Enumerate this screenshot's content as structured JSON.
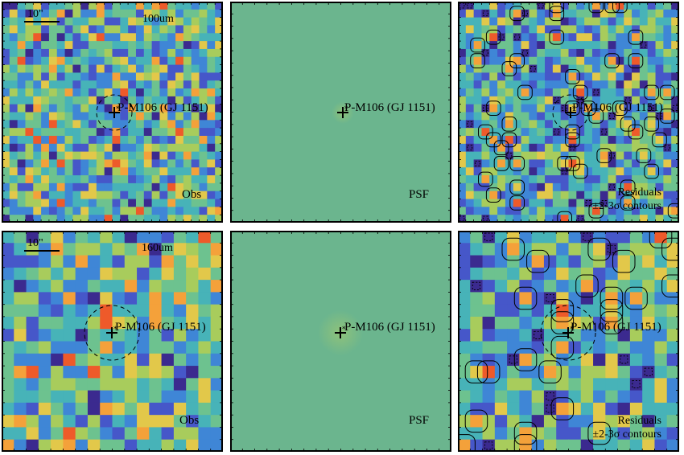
{
  "source_label": "P-M106 (GJ 1151)",
  "scale_bar_label": "10\"",
  "colors": {
    "psf_background": "#6bb58e",
    "psf_center": "#8fc27a",
    "contour": "#000000",
    "frame": "#000000",
    "map_palette": [
      "#3b2a8f",
      "#4657c9",
      "#3f86d6",
      "#47b3b8",
      "#6dc28f",
      "#a8cc5c",
      "#e2c84a",
      "#f4a13a",
      "#ee5a2a"
    ]
  },
  "rows": [
    {
      "band": "100um",
      "grid": 28,
      "panels": [
        {
          "kind": "observed",
          "label": "Obs"
        },
        {
          "kind": "psf",
          "label": "PSF"
        },
        {
          "kind": "residual",
          "label_line1": "Residuals",
          "label_line2": "±2-3σ contours"
        }
      ],
      "axis_ticks": [
        "20",
        "30",
        "40"
      ]
    },
    {
      "band": "160um",
      "grid": 18,
      "panels": [
        {
          "kind": "observed",
          "label": "Obs"
        },
        {
          "kind": "psf",
          "label": "PSF"
        },
        {
          "kind": "residual",
          "label_line1": "Residuals",
          "label_line2": "±2-3σ contours"
        }
      ],
      "axis_ticks": [
        "20",
        "15",
        "10"
      ]
    }
  ]
}
